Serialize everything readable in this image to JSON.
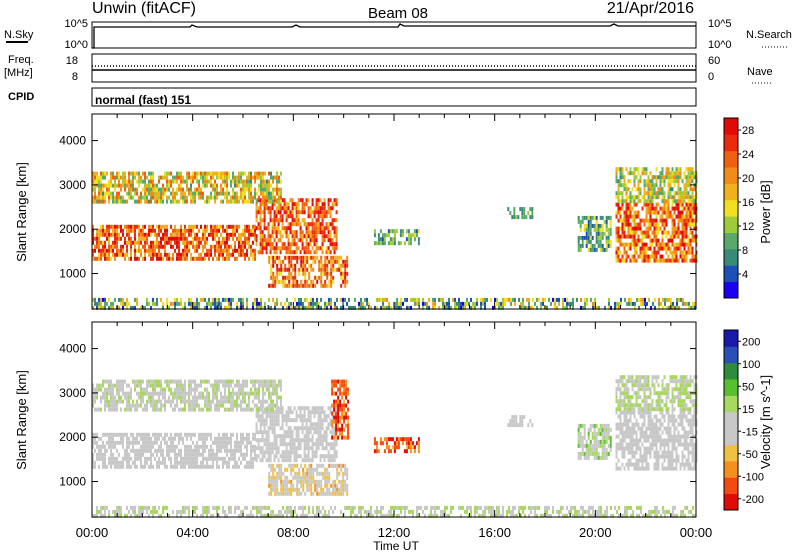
{
  "header": {
    "title": "Unwin (fitACF)",
    "beam": "Beam 08",
    "date": "21/Apr/2016"
  },
  "nsky": {
    "label": "N.Sky",
    "tick_labels": [
      "10^5",
      "10^0"
    ],
    "right_label": "N.Search",
    "right_tick_labels": [
      "10^5",
      "10^0"
    ]
  },
  "freq": {
    "label_line1": "Freq.",
    "label_line2": "[MHz]",
    "tick_labels": [
      "18",
      "8"
    ],
    "right_label": "Nave",
    "right_tick_labels": [
      "60",
      "0"
    ]
  },
  "cpid": {
    "label": "CPID",
    "text": "normal (fast) 151"
  },
  "colors": {
    "power_scale": [
      "#1a00f0",
      "#1c4fb8",
      "#3a8a7a",
      "#5aa86a",
      "#9ecb3a",
      "#f0e020",
      "#f0b020",
      "#f28c18",
      "#f06010",
      "#ea2c0c",
      "#e00a08"
    ],
    "velocity_scale": [
      "#e00a08",
      "#f24a10",
      "#f59020",
      "#f0c040",
      "#c8c8c8",
      "#c8c8c8",
      "#a8d860",
      "#58c030",
      "#2e8c3c",
      "#2a50b8",
      "#1a1aa8"
    ]
  },
  "chart_data": [
    {
      "type": "heatmap",
      "panel": "power",
      "xlabel": "",
      "ylabel": "Slant Range [km]",
      "x_tick_labels": [
        "00:00",
        "04:00",
        "08:00",
        "12:00",
        "16:00",
        "20:00",
        "00:00"
      ],
      "y_tick_labels": [
        "1000",
        "2000",
        "3000",
        "4000"
      ],
      "ylim": [
        200,
        4600
      ],
      "colorbar_label": "Power [dB]",
      "colorbar_ticks": [
        "4",
        "8",
        "12",
        "16",
        "20",
        "24",
        "28"
      ],
      "color_range": [
        0,
        30
      ],
      "scatter_regions": [
        {
          "t_start": 0.0,
          "t_end": 6.5,
          "range_lo": 1300,
          "range_hi": 2100,
          "power_lo": 16,
          "power_hi": 30
        },
        {
          "t_start": 6.5,
          "t_end": 9.7,
          "range_lo": 1500,
          "range_hi": 2700,
          "power_lo": 16,
          "power_hi": 30
        },
        {
          "t_start": 7.0,
          "t_end": 10.1,
          "range_lo": 700,
          "range_hi": 1400,
          "power_lo": 14,
          "power_hi": 28
        },
        {
          "t_start": 0.0,
          "t_end": 7.5,
          "range_lo": 2600,
          "range_hi": 3300,
          "power_lo": 8,
          "power_hi": 24
        },
        {
          "t_start": 11.2,
          "t_end": 13.0,
          "range_lo": 1700,
          "range_hi": 2000,
          "power_lo": 4,
          "power_hi": 14
        },
        {
          "t_start": 16.5,
          "t_end": 17.5,
          "range_lo": 2300,
          "range_hi": 2500,
          "power_lo": 6,
          "power_hi": 14
        },
        {
          "t_start": 19.3,
          "t_end": 20.6,
          "range_lo": 1500,
          "range_hi": 2300,
          "power_lo": 4,
          "power_hi": 16
        },
        {
          "t_start": 20.8,
          "t_end": 24.0,
          "range_lo": 1300,
          "range_hi": 2600,
          "power_lo": 14,
          "power_hi": 30
        },
        {
          "t_start": 20.8,
          "t_end": 24.0,
          "range_lo": 2600,
          "range_hi": 3400,
          "power_lo": 8,
          "power_hi": 20
        },
        {
          "t_start": 0.0,
          "t_end": 24.0,
          "range_lo": 250,
          "range_hi": 450,
          "power_lo": 2,
          "power_hi": 20
        }
      ]
    },
    {
      "type": "heatmap",
      "panel": "velocity",
      "xlabel": "Time UT",
      "ylabel": "Slant Range [km]",
      "x_tick_labels": [
        "00:00",
        "04:00",
        "08:00",
        "12:00",
        "16:00",
        "20:00",
        "00:00"
      ],
      "y_tick_labels": [
        "1000",
        "2000",
        "3000",
        "4000"
      ],
      "ylim": [
        200,
        4600
      ],
      "colorbar_label": "Velocity [m s^-1]",
      "colorbar_ticks": [
        "200",
        "100",
        "50",
        "15",
        "-15",
        "-50",
        "-100",
        "-200"
      ],
      "color_range": [
        -250,
        250
      ],
      "scatter_regions": [
        {
          "t_start": 0.0,
          "t_end": 6.5,
          "range_lo": 1300,
          "range_hi": 2100,
          "velocity_lo": -15,
          "velocity_hi": 15
        },
        {
          "t_start": 6.5,
          "t_end": 9.7,
          "range_lo": 1500,
          "range_hi": 2700,
          "velocity_lo": -15,
          "velocity_hi": 15
        },
        {
          "t_start": 7.0,
          "t_end": 10.1,
          "range_lo": 700,
          "range_hi": 1400,
          "velocity_lo": -120,
          "velocity_hi": 20
        },
        {
          "t_start": 0.0,
          "t_end": 7.5,
          "range_lo": 2600,
          "range_hi": 3300,
          "velocity_lo": -15,
          "velocity_hi": 40
        },
        {
          "t_start": 9.5,
          "t_end": 10.2,
          "range_lo": 2000,
          "range_hi": 3300,
          "velocity_lo": -250,
          "velocity_hi": -100
        },
        {
          "t_start": 11.2,
          "t_end": 13.0,
          "range_lo": 1700,
          "range_hi": 2000,
          "velocity_lo": -250,
          "velocity_hi": -100
        },
        {
          "t_start": 16.5,
          "t_end": 17.5,
          "range_lo": 2300,
          "range_hi": 2500,
          "velocity_lo": -15,
          "velocity_hi": 15
        },
        {
          "t_start": 19.3,
          "t_end": 20.6,
          "range_lo": 1500,
          "range_hi": 2300,
          "velocity_lo": -60,
          "velocity_hi": 80
        },
        {
          "t_start": 20.8,
          "t_end": 24.0,
          "range_lo": 1300,
          "range_hi": 2600,
          "velocity_lo": -15,
          "velocity_hi": 15
        },
        {
          "t_start": 20.8,
          "t_end": 24.0,
          "range_lo": 2600,
          "range_hi": 3400,
          "velocity_lo": -15,
          "velocity_hi": 60
        },
        {
          "t_start": 0.0,
          "t_end": 24.0,
          "range_lo": 250,
          "range_hi": 450,
          "velocity_lo": -30,
          "velocity_hi": 60
        }
      ]
    }
  ]
}
